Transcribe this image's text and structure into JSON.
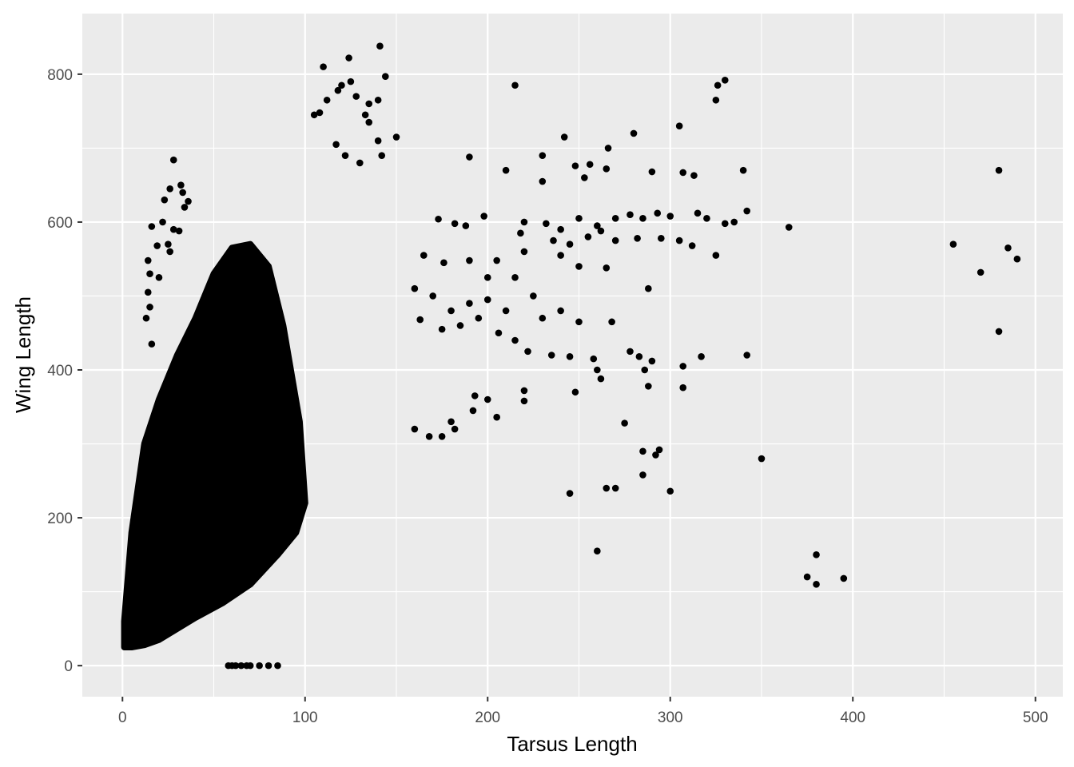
{
  "chart_data": {
    "type": "scatter",
    "title": "",
    "xlabel": "Tarsus Length",
    "ylabel": "Wing Length",
    "xlim": [
      -22,
      515
    ],
    "ylim": [
      -42,
      882
    ],
    "x_ticks": [
      0,
      100,
      200,
      300,
      400,
      500
    ],
    "x_tick_labels": [
      "0",
      "100",
      "200",
      "300",
      "400",
      "500"
    ],
    "y_ticks": [
      0,
      200,
      400,
      600,
      800
    ],
    "y_tick_labels": [
      "0",
      "200",
      "400",
      "600",
      "800"
    ],
    "grid": true,
    "legend": "none",
    "colors": {
      "panel": "#ebebeb",
      "grid": "#ffffff",
      "point": "#000000",
      "tick_text": "#4d4d4d",
      "title_text": "#000000"
    },
    "dense_region": {
      "description_polygon_x": [
        1,
        5,
        12,
        20,
        30,
        40,
        55,
        70,
        85,
        95,
        100,
        97,
        88,
        80,
        70,
        60,
        50,
        40,
        30,
        20,
        12,
        5,
        1
      ],
      "description_polygon_y": [
        25,
        25,
        28,
        35,
        50,
        65,
        85,
        110,
        150,
        180,
        220,
        330,
        460,
        540,
        570,
        565,
        530,
        470,
        420,
        360,
        300,
        180,
        60
      ]
    },
    "series": [
      {
        "points": [
          [
            141,
            838
          ],
          [
            124,
            822
          ],
          [
            144,
            797
          ],
          [
            110,
            810
          ],
          [
            120,
            785
          ],
          [
            128,
            770
          ],
          [
            135,
            760
          ],
          [
            140,
            765
          ],
          [
            118,
            778
          ],
          [
            112,
            765
          ],
          [
            125,
            790
          ],
          [
            105,
            745
          ],
          [
            108,
            748
          ],
          [
            133,
            745
          ],
          [
            135,
            735
          ],
          [
            140,
            710
          ],
          [
            150,
            715
          ],
          [
            117,
            705
          ],
          [
            122,
            690
          ],
          [
            130,
            680
          ],
          [
            142,
            690
          ],
          [
            28,
            684
          ],
          [
            32,
            650
          ],
          [
            33,
            640
          ],
          [
            23,
            630
          ],
          [
            26,
            645
          ],
          [
            34,
            620
          ],
          [
            36,
            628
          ],
          [
            22,
            600
          ],
          [
            28,
            590
          ],
          [
            31,
            588
          ],
          [
            25,
            570
          ],
          [
            26,
            560
          ],
          [
            16,
            594
          ],
          [
            19,
            568
          ],
          [
            14,
            548
          ],
          [
            15,
            530
          ],
          [
            20,
            525
          ],
          [
            14,
            505
          ],
          [
            15,
            485
          ],
          [
            13,
            470
          ],
          [
            16,
            435
          ],
          [
            215,
            785
          ],
          [
            326,
            785
          ],
          [
            330,
            792
          ],
          [
            325,
            765
          ],
          [
            305,
            730
          ],
          [
            280,
            720
          ],
          [
            242,
            715
          ],
          [
            266,
            700
          ],
          [
            230,
            690
          ],
          [
            190,
            688
          ],
          [
            210,
            670
          ],
          [
            340,
            670
          ],
          [
            307,
            667
          ],
          [
            313,
            663
          ],
          [
            290,
            668
          ],
          [
            256,
            678
          ],
          [
            248,
            676
          ],
          [
            265,
            672
          ],
          [
            230,
            655
          ],
          [
            253,
            660
          ],
          [
            173,
            604
          ],
          [
            182,
            598
          ],
          [
            188,
            595
          ],
          [
            198,
            608
          ],
          [
            220,
            600
          ],
          [
            232,
            598
          ],
          [
            240,
            590
          ],
          [
            250,
            605
          ],
          [
            260,
            595
          ],
          [
            270,
            605
          ],
          [
            278,
            610
          ],
          [
            285,
            605
          ],
          [
            293,
            612
          ],
          [
            300,
            608
          ],
          [
            315,
            612
          ],
          [
            320,
            605
          ],
          [
            335,
            600
          ],
          [
            342,
            615
          ],
          [
            365,
            593
          ],
          [
            330,
            598
          ],
          [
            262,
            588
          ],
          [
            218,
            585
          ],
          [
            236,
            575
          ],
          [
            245,
            570
          ],
          [
            255,
            580
          ],
          [
            270,
            575
          ],
          [
            282,
            578
          ],
          [
            295,
            578
          ],
          [
            305,
            575
          ],
          [
            312,
            568
          ],
          [
            165,
            555
          ],
          [
            176,
            545
          ],
          [
            190,
            548
          ],
          [
            205,
            548
          ],
          [
            220,
            560
          ],
          [
            240,
            555
          ],
          [
            250,
            540
          ],
          [
            265,
            538
          ],
          [
            200,
            525
          ],
          [
            215,
            525
          ],
          [
            160,
            510
          ],
          [
            170,
            500
          ],
          [
            180,
            480
          ],
          [
            190,
            490
          ],
          [
            200,
            495
          ],
          [
            210,
            480
          ],
          [
            225,
            500
          ],
          [
            240,
            480
          ],
          [
            250,
            465
          ],
          [
            230,
            470
          ],
          [
            163,
            468
          ],
          [
            175,
            455
          ],
          [
            185,
            460
          ],
          [
            195,
            470
          ],
          [
            206,
            450
          ],
          [
            215,
            440
          ],
          [
            222,
            425
          ],
          [
            235,
            420
          ],
          [
            245,
            418
          ],
          [
            258,
            415
          ],
          [
            268,
            465
          ],
          [
            278,
            425
          ],
          [
            290,
            412
          ],
          [
            317,
            418
          ],
          [
            342,
            420
          ],
          [
            288,
            510
          ],
          [
            325,
            555
          ],
          [
            307,
            405
          ],
          [
            307,
            376
          ],
          [
            260,
            400
          ],
          [
            262,
            388
          ],
          [
            248,
            370
          ],
          [
            220,
            372
          ],
          [
            220,
            358
          ],
          [
            205,
            336
          ],
          [
            193,
            365
          ],
          [
            200,
            360
          ],
          [
            182,
            320
          ],
          [
            175,
            310
          ],
          [
            160,
            320
          ],
          [
            168,
            310
          ],
          [
            180,
            330
          ],
          [
            192,
            345
          ],
          [
            275,
            328
          ],
          [
            283,
            418
          ],
          [
            286,
            400
          ],
          [
            288,
            378
          ],
          [
            292,
            285
          ],
          [
            294,
            292
          ],
          [
            285,
            258
          ],
          [
            285,
            290
          ],
          [
            300,
            236
          ],
          [
            265,
            240
          ],
          [
            270,
            240
          ],
          [
            245,
            233
          ],
          [
            350,
            280
          ],
          [
            260,
            155
          ],
          [
            380,
            150
          ],
          [
            375,
            120
          ],
          [
            380,
            110
          ],
          [
            395,
            118
          ],
          [
            455,
            570
          ],
          [
            470,
            532
          ],
          [
            480,
            670
          ],
          [
            485,
            565
          ],
          [
            490,
            550
          ],
          [
            480,
            452
          ],
          [
            60,
            0
          ],
          [
            65,
            0
          ],
          [
            70,
            0
          ],
          [
            75,
            0
          ],
          [
            80,
            0
          ],
          [
            85,
            0
          ],
          [
            58,
            0
          ],
          [
            62,
            0
          ],
          [
            68,
            0
          ]
        ]
      }
    ]
  }
}
